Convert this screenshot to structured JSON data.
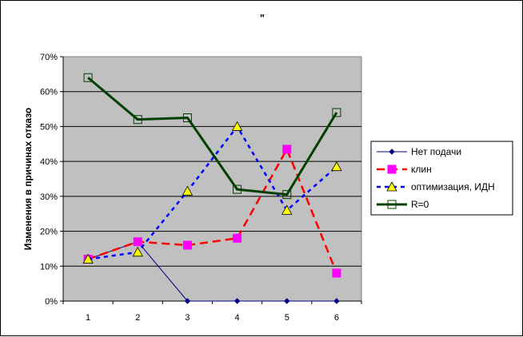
{
  "chart_data": {
    "type": "line",
    "title": "\"",
    "xlabel": "",
    "ylabel": "Изменения в причинах отказо",
    "categories": [
      "1",
      "2",
      "3",
      "4",
      "5",
      "6"
    ],
    "yticks": [
      "0%",
      "10%",
      "20%",
      "30%",
      "40%",
      "50%",
      "60%",
      "70%"
    ],
    "ylim": [
      0,
      0.7
    ],
    "grid": true,
    "legend_position": "right",
    "plot_background": "#c0c0c0",
    "series": [
      {
        "name": "Нет подачи",
        "values": [
          0.12,
          0.17,
          0.0,
          0.0,
          0.0,
          0.0
        ],
        "color": "#000080",
        "line": "solid-thin",
        "marker": "diamond"
      },
      {
        "name": "клин",
        "values": [
          0.12,
          0.17,
          0.16,
          0.18,
          0.435,
          0.08
        ],
        "color": "#ff0000",
        "line": "dashed",
        "marker": "square",
        "marker_fill": "#ff00ff"
      },
      {
        "name": "оптимизация, ИДН",
        "values": [
          0.12,
          0.14,
          0.315,
          0.5,
          0.26,
          0.385
        ],
        "color": "#0000ff",
        "line": "dotted",
        "marker": "triangle",
        "marker_fill": "#ffff00"
      },
      {
        "name": "R=0",
        "values": [
          0.64,
          0.52,
          0.525,
          0.32,
          0.305,
          0.54
        ],
        "color": "#004000",
        "line": "solid-thick",
        "marker": "open-square"
      }
    ]
  }
}
